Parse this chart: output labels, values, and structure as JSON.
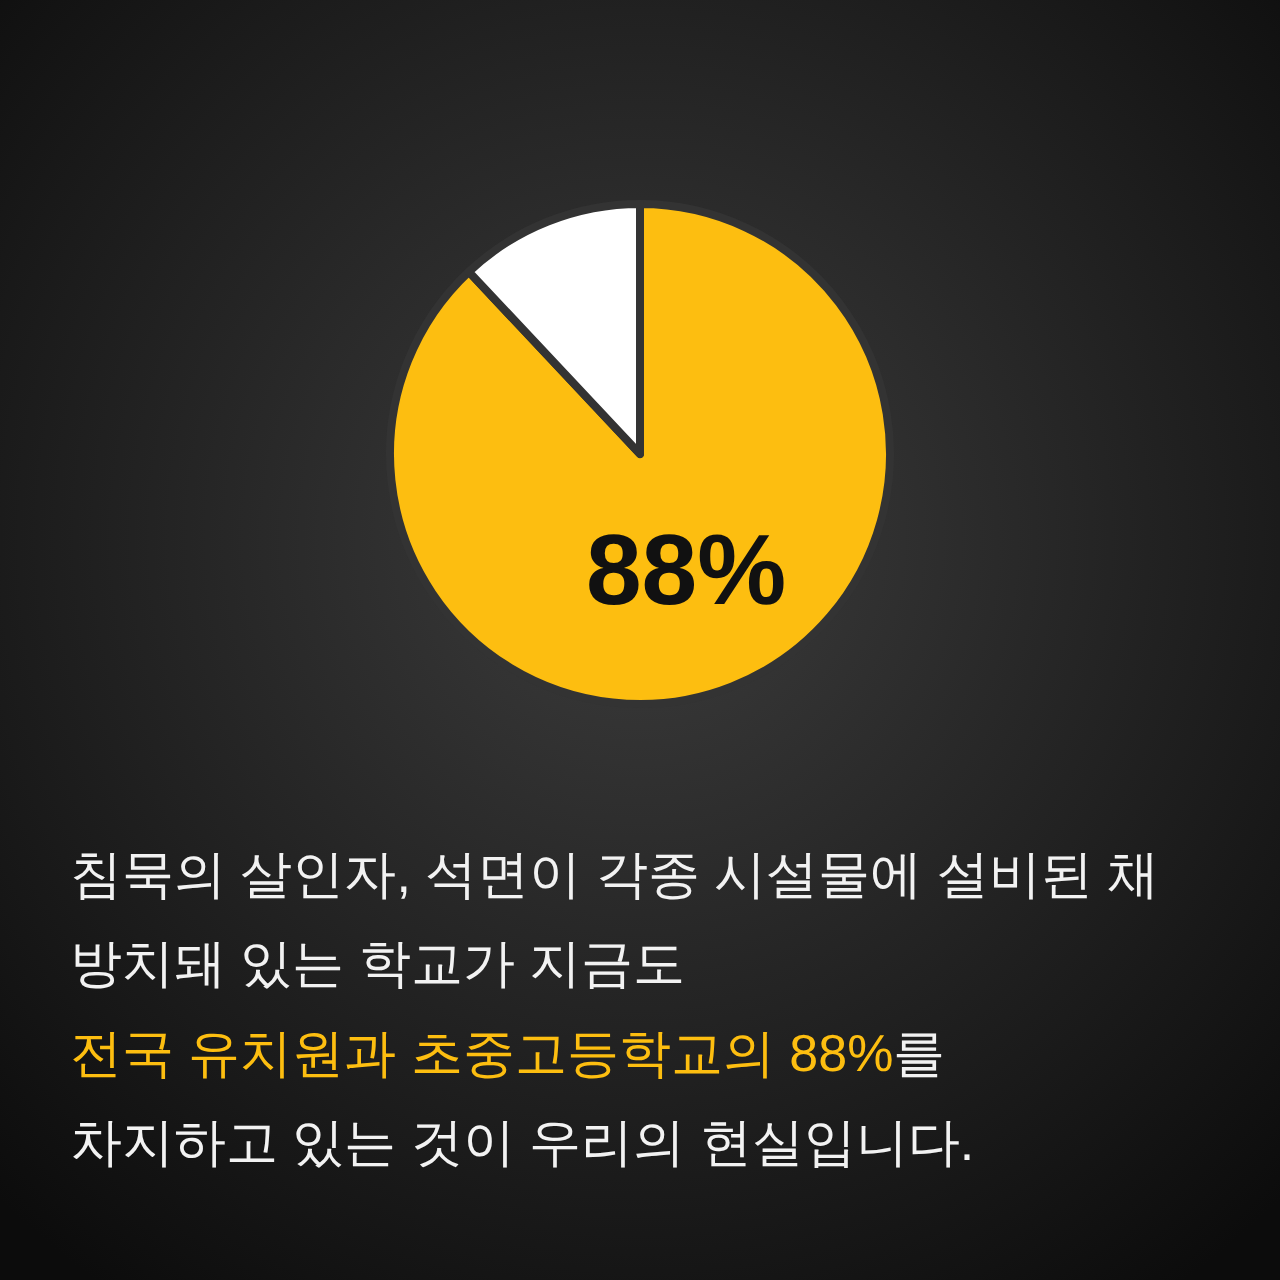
{
  "chart_data": {
    "type": "pie",
    "categories": [
      null,
      null
    ],
    "values": [
      88,
      12
    ],
    "colors": [
      "#fdbe10",
      "#ffffff"
    ],
    "value_labels": [
      "88%",
      null
    ],
    "annotations": [
      "침묵의 살인자, 석면이 각종 시설물에 설비된 채",
      "방치돼 있는 학교가 지금도",
      "전국 유치원과 초중고등학교의 88%를",
      "차지하고 있는 것이 우리의 현실입니다."
    ]
  }
}
